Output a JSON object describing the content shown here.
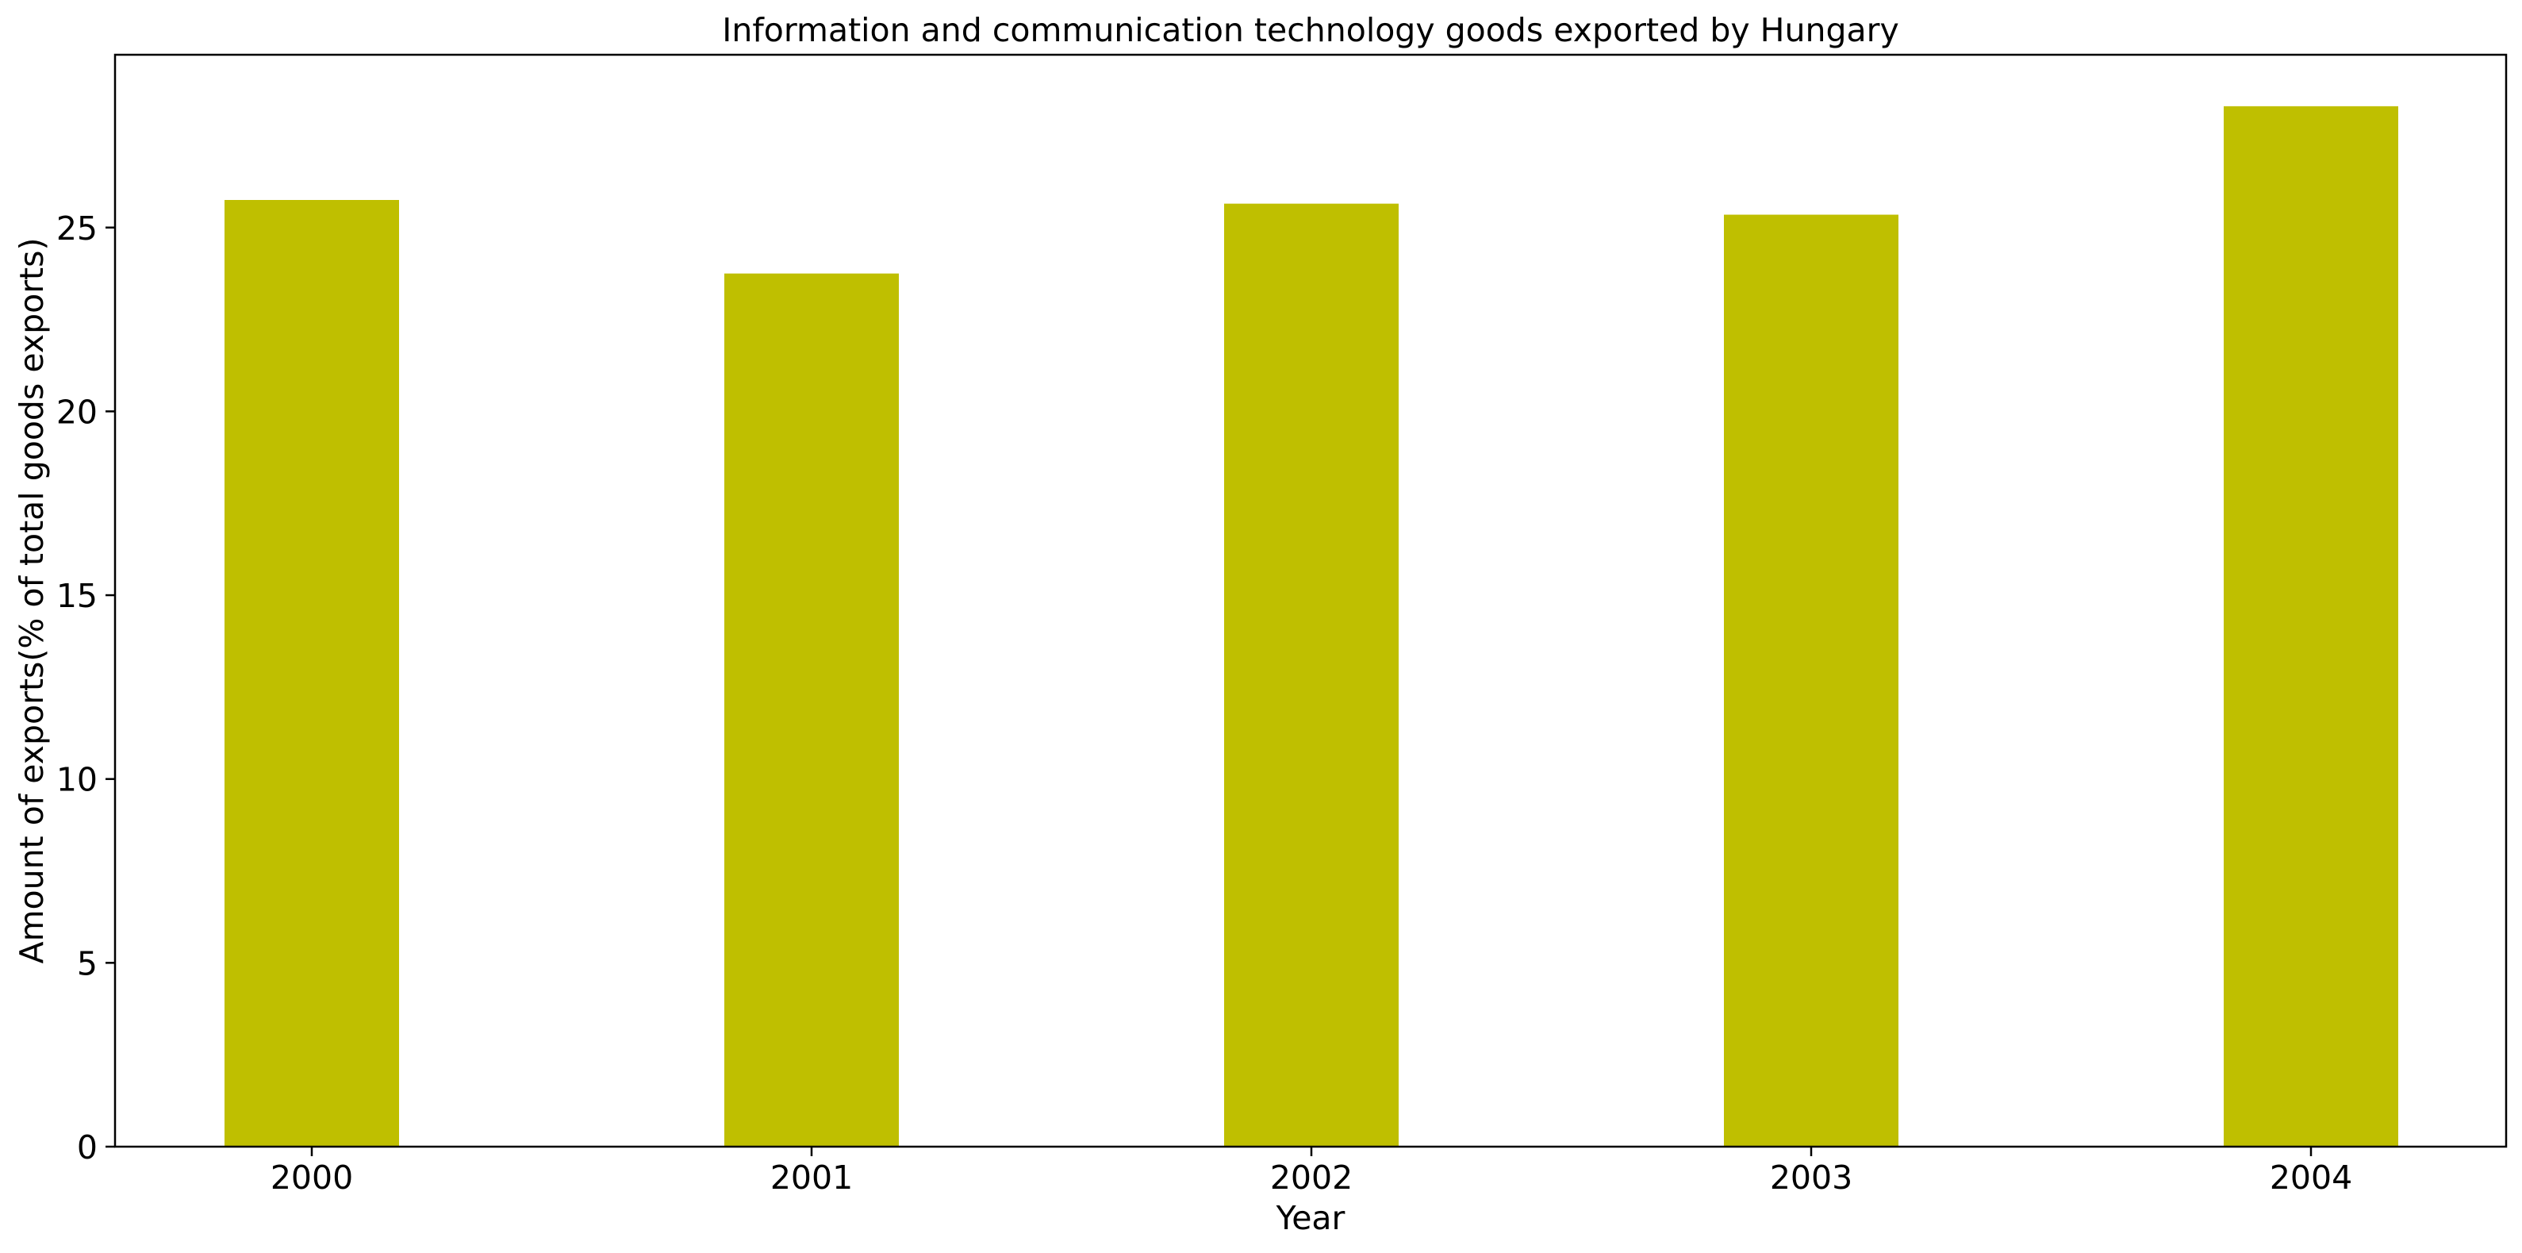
{
  "chart_data": {
    "type": "bar",
    "title": "Information and communication technology goods exported by Hungary",
    "xlabel": "Year",
    "ylabel": "Amount of exports(% of total goods exports)",
    "categories": [
      "2000",
      "2001",
      "2002",
      "2003",
      "2004"
    ],
    "values": [
      25.75,
      23.75,
      25.65,
      25.35,
      28.3
    ],
    "ylim": [
      0,
      29.7
    ],
    "yticks": [
      0,
      5,
      10,
      15,
      20,
      25
    ],
    "grid": false,
    "legend": "none",
    "bar_color": "#bfbf00"
  }
}
